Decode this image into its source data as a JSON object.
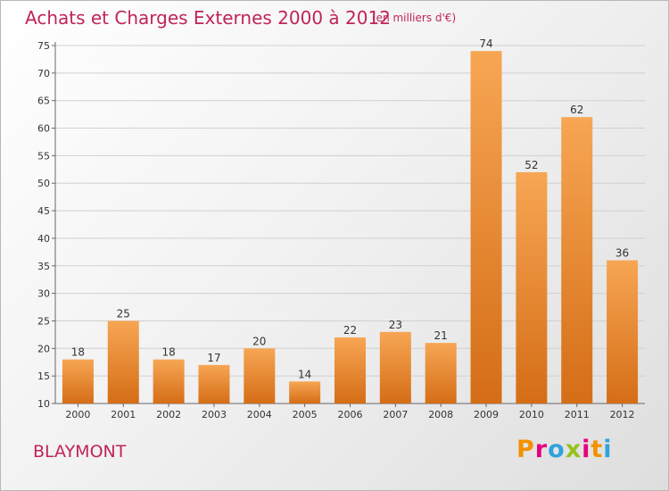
{
  "header": {
    "title": "Achats et Charges Externes 2000 à 2012",
    "subtitle": "(en milliers d'€)"
  },
  "footer": {
    "place": "BLAYMONT",
    "logo_text": "Proxiti",
    "logo_colors": [
      "#f39200",
      "#e6007e",
      "#2ea3dc",
      "#95c11f",
      "#e6007e",
      "#f39200",
      "#2ea3dc"
    ]
  },
  "colors": {
    "bar_top": "#f7a654",
    "bar_bottom": "#d56d16",
    "title": "#c0245a"
  },
  "chart_data": {
    "type": "bar",
    "title": "Achats et Charges Externes 2000 à 2012",
    "subtitle": "(en milliers d'€)",
    "categories": [
      "2000",
      "2001",
      "2002",
      "2003",
      "2004",
      "2005",
      "2006",
      "2007",
      "2008",
      "2009",
      "2010",
      "2011",
      "2012"
    ],
    "values": [
      18,
      25,
      18,
      17,
      20,
      14,
      22,
      23,
      21,
      74,
      52,
      62,
      36
    ],
    "ylim": [
      10,
      75
    ],
    "yticks": [
      10,
      15,
      20,
      25,
      30,
      35,
      40,
      45,
      50,
      55,
      60,
      65,
      70,
      75
    ],
    "grid": true,
    "legend": "none"
  }
}
